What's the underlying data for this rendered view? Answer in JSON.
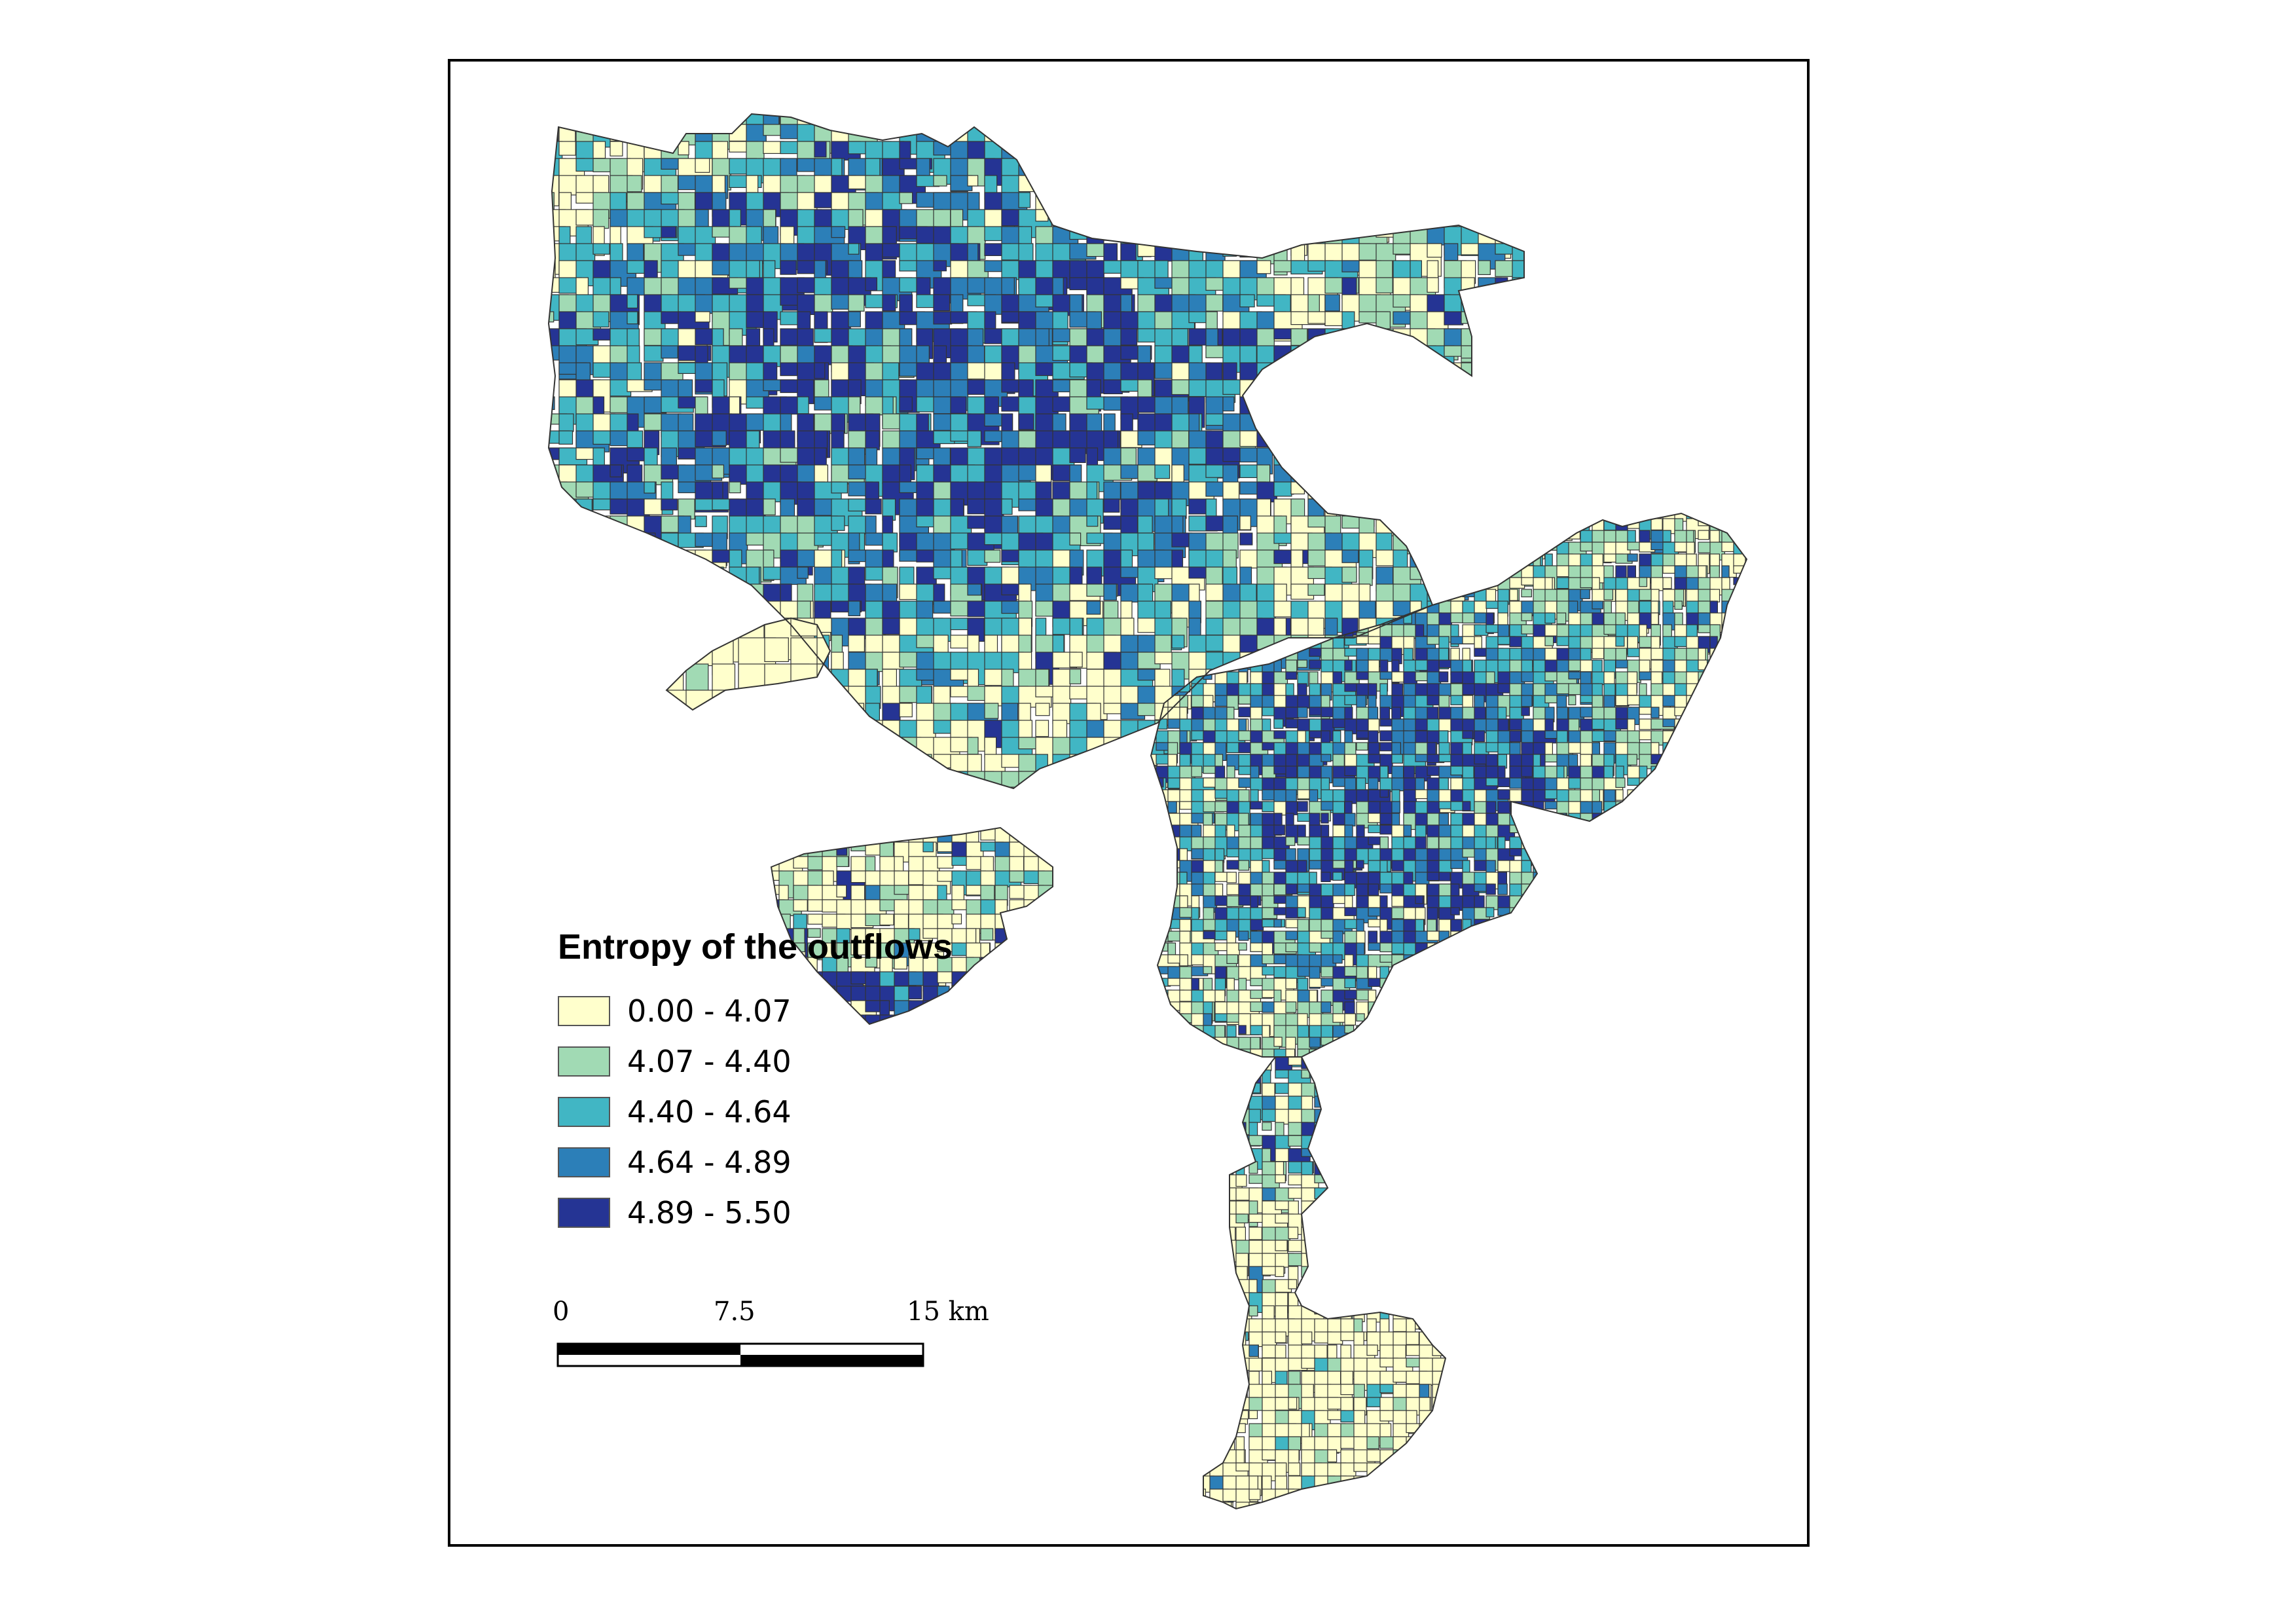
{
  "legend": {
    "title": "Entropy of the outflows",
    "classes": [
      {
        "label": "0.00 - 4.07",
        "color": "#ffffcc"
      },
      {
        "label": "4.07 - 4.40",
        "color": "#a1dab4"
      },
      {
        "label": "4.40 - 4.64",
        "color": "#41b6c4"
      },
      {
        "label": "4.64 - 4.89",
        "color": "#2c7fb8"
      },
      {
        "label": "4.89 - 5.50",
        "color": "#253494"
      }
    ]
  },
  "scalebar": {
    "tick_labels": [
      "0",
      "7.5",
      "15 km"
    ]
  },
  "north_arrow": {
    "icon": "north-arrow-icon"
  },
  "colors": {
    "frame": "#000000",
    "boundary": "#333333"
  }
}
